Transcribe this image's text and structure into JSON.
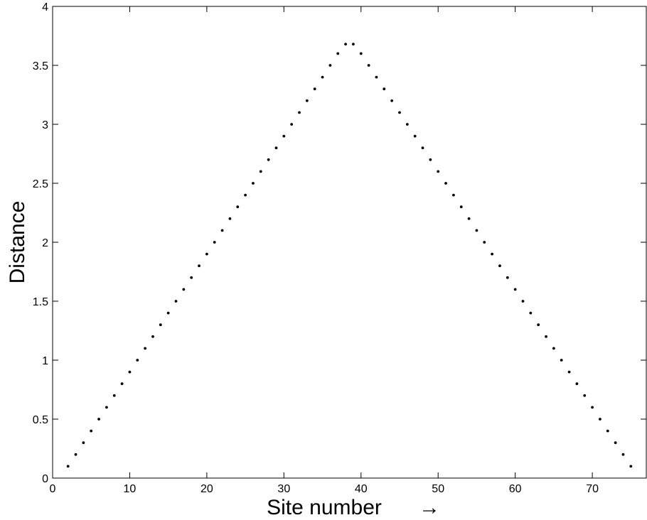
{
  "chart_data": {
    "type": "scatter",
    "title": "",
    "xlabel": "Site number",
    "xlabel_arrow": "→",
    "ylabel": "Distance",
    "xlim": [
      0,
      77
    ],
    "ylim": [
      0,
      4
    ],
    "x_ticks": [
      0,
      10,
      20,
      30,
      40,
      50,
      60,
      70
    ],
    "y_ticks": [
      0,
      0.5,
      1,
      1.5,
      2,
      2.5,
      3,
      3.5,
      4
    ],
    "x_tick_labels": [
      "0",
      "10",
      "20",
      "30",
      "40",
      "50",
      "60",
      "70"
    ],
    "y_tick_labels": [
      "0",
      "0.5",
      "1",
      "1.5",
      "2",
      "2.5",
      "3",
      "3.5",
      "4"
    ],
    "grid": false,
    "marker_color": "#000000",
    "series": [
      {
        "x": [
          2,
          3,
          4,
          5,
          6,
          7,
          8,
          9,
          10,
          11,
          12,
          13,
          14,
          15,
          16,
          17,
          18,
          19,
          20,
          21,
          22,
          23,
          24,
          25,
          26,
          27,
          28,
          29,
          30,
          31,
          32,
          33,
          34,
          35,
          36,
          37,
          38,
          39,
          40,
          41,
          42,
          43,
          44,
          45,
          46,
          47,
          48,
          49,
          50,
          51,
          52,
          53,
          54,
          55,
          56,
          57,
          58,
          59,
          60,
          61,
          62,
          63,
          64,
          65,
          66,
          67,
          68,
          69,
          70,
          71,
          72,
          73,
          74,
          75
        ],
        "y": [
          0.1,
          0.2,
          0.3,
          0.4,
          0.5,
          0.6,
          0.7,
          0.8,
          0.9,
          1.0,
          1.1,
          1.2,
          1.3,
          1.4,
          1.5,
          1.6,
          1.7,
          1.8,
          1.9,
          2.0,
          2.1,
          2.2,
          2.3,
          2.4,
          2.5,
          2.6,
          2.7,
          2.8,
          2.9,
          3.0,
          3.1,
          3.2,
          3.3,
          3.4,
          3.5,
          3.6,
          3.68,
          3.68,
          3.6,
          3.5,
          3.4,
          3.3,
          3.2,
          3.1,
          3.0,
          2.9,
          2.8,
          2.7,
          2.6,
          2.5,
          2.4,
          2.3,
          2.2,
          2.1,
          2.0,
          1.9,
          1.8,
          1.7,
          1.6,
          1.5,
          1.4,
          1.3,
          1.2,
          1.1,
          1.0,
          0.9,
          0.8,
          0.7,
          0.6,
          0.5,
          0.4,
          0.3,
          0.2,
          0.1
        ]
      }
    ]
  }
}
